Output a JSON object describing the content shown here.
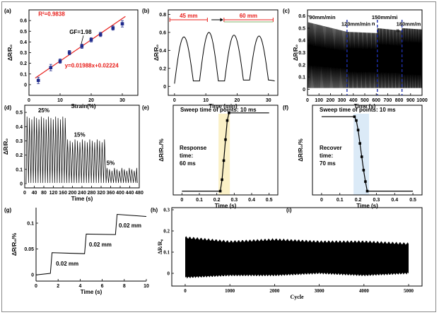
{
  "chart_data": [
    {
      "id": "a",
      "panel_label": "(a)",
      "type": "scatter",
      "xlabel": "Strain(%)",
      "ylabel": "ΔR/R₀",
      "xlim": [
        0,
        35
      ],
      "ylim": [
        -0.1,
        0.7
      ],
      "xticks": [
        0,
        10,
        20,
        30
      ],
      "yticks": [
        0.0,
        0.1,
        0.2,
        0.3,
        0.4,
        0.5,
        0.6
      ],
      "x": [
        3,
        7,
        10,
        13,
        17,
        20,
        23,
        27,
        30
      ],
      "values": [
        0.04,
        0.16,
        0.22,
        0.3,
        0.36,
        0.42,
        0.47,
        0.53,
        0.57
      ],
      "errors": [
        0.03,
        0.03,
        0.02,
        0.02,
        0.02,
        0.02,
        0.02,
        0.02,
        0.03
      ],
      "fit": {
        "slope": 0.01988,
        "intercept": 0.02224
      },
      "annotations": {
        "r2": "R²=0.9838",
        "gf": "GF=1.98",
        "equation": "y=0.01988x+0.02224"
      },
      "colors": {
        "points": "#1f2a8c",
        "fit": "#e8201c",
        "annot": "#e8201c"
      }
    },
    {
      "id": "b",
      "panel_label": "(b)",
      "type": "line",
      "xlabel": "Time (min)",
      "ylabel": "ΔR/R₀",
      "xlim": [
        -2,
        33
      ],
      "ylim": [
        -0.1,
        0.85
      ],
      "xticks": [
        0,
        10,
        20,
        30
      ],
      "yticks": [
        0.0,
        0.2,
        0.4,
        0.6,
        0.8
      ],
      "x": [
        0,
        3,
        6,
        8,
        11,
        14,
        16,
        19,
        22,
        24,
        27,
        30,
        32
      ],
      "values": [
        0.03,
        0.55,
        0.06,
        0.06,
        0.6,
        0.06,
        0.06,
        0.57,
        0.07,
        0.07,
        0.56,
        0.07,
        0.06
      ],
      "annotations": {
        "label_45": "45 mm",
        "label_60": "60 mm"
      },
      "colors": {
        "line": "#000000",
        "annot": "#e8201c"
      }
    },
    {
      "id": "c",
      "panel_label": "(c)",
      "type": "line",
      "xlabel": "Time (s)",
      "ylabel": "ΔR/R₀",
      "xlim": [
        0,
        1000
      ],
      "ylim": [
        -0.05,
        0.65
      ],
      "xticks": [
        0,
        100,
        200,
        300,
        400,
        500,
        600,
        700,
        800,
        900,
        1000
      ],
      "yticks": [
        0.0,
        0.1,
        0.2,
        0.3,
        0.4,
        0.5,
        0.6
      ],
      "segments": [
        {
          "label": "90mm/min",
          "x_start": 0,
          "x_end": 345,
          "peak_start": 0.55,
          "peak_end": 0.47,
          "n_cycles": 60
        },
        {
          "label": "120mm/min",
          "x_start": 345,
          "x_end": 610,
          "peak_start": 0.47,
          "peak_end": 0.46,
          "n_cycles": 50
        },
        {
          "label": "150mm/mi\nn",
          "x_start": 610,
          "x_end": 825,
          "peak_start": 0.5,
          "peak_end": 0.48,
          "n_cycles": 42
        },
        {
          "label": "180mm/m\nn",
          "x_start": 825,
          "x_end": 1000,
          "peak_start": 0.5,
          "peak_end": 0.49,
          "n_cycles": 36
        }
      ],
      "dividers": [
        345,
        610,
        825
      ],
      "colors": {
        "line": "#000000",
        "divider": "#1d2fa8"
      }
    },
    {
      "id": "d",
      "panel_label": "(d)",
      "type": "line",
      "xlabel": "Time (s)",
      "ylabel": "ΔR/R₀",
      "xlim": [
        0,
        480
      ],
      "ylim": [
        -0.03,
        0.55
      ],
      "xticks": [
        0,
        40,
        80,
        120,
        160,
        200,
        240,
        280,
        320,
        360,
        400,
        440,
        480
      ],
      "yticks": [
        0.0,
        0.1,
        0.2,
        0.3,
        0.4,
        0.5
      ],
      "segments": [
        {
          "label": "25%",
          "x_start": 0,
          "x_end": 170,
          "peak": 0.47,
          "n_cycles": 17
        },
        {
          "label": "15%",
          "x_start": 170,
          "x_end": 335,
          "peak": 0.31,
          "n_cycles": 16
        },
        {
          "label": "5%",
          "x_start": 335,
          "x_end": 470,
          "peak": 0.11,
          "n_cycles": 13
        }
      ],
      "colors": {
        "line": "#000000"
      }
    },
    {
      "id": "e",
      "panel_label": "(e)",
      "type": "line",
      "xlabel": "Time (s)",
      "ylabel": "ΔR/R₀/%",
      "xlim": [
        -0.05,
        0.55
      ],
      "ylim": [
        -0.02,
        0.45
      ],
      "xticks": [
        0.0,
        0.1,
        0.2,
        0.3,
        0.4,
        0.5
      ],
      "yticks": [],
      "x": [
        0.0,
        0.22,
        0.23,
        0.24,
        0.25,
        0.26,
        0.27,
        0.5
      ],
      "values": [
        0.0,
        0.0,
        0.06,
        0.16,
        0.27,
        0.37,
        0.41,
        0.41
      ],
      "highlight_x": [
        0.21,
        0.275
      ],
      "annotations": {
        "header": "Sweep time of points: 10 ms",
        "caption": "Response\ntime:\n60 ms"
      },
      "colors": {
        "line": "#000000",
        "band": "#fbf1c7"
      }
    },
    {
      "id": "f",
      "panel_label": "(f)",
      "type": "line",
      "xlabel": "Time (s)",
      "ylabel": "ΔR/R₀/%",
      "xlim": [
        -0.05,
        0.55
      ],
      "ylim": [
        -0.02,
        0.45
      ],
      "xticks": [
        0.0,
        0.1,
        0.2,
        0.3,
        0.4,
        0.5
      ],
      "yticks": [],
      "x": [
        0.0,
        0.18,
        0.19,
        0.2,
        0.21,
        0.22,
        0.23,
        0.24,
        0.25,
        0.5
      ],
      "values": [
        0.39,
        0.39,
        0.37,
        0.32,
        0.25,
        0.18,
        0.11,
        0.05,
        0.0,
        0.0
      ],
      "highlight_x": [
        0.175,
        0.26
      ],
      "annotations": {
        "header": "Sweep time of points: 10 ms",
        "caption": "Recover\ntime:\n70 ms"
      },
      "colors": {
        "line": "#000000",
        "band": "#dbeaf7"
      }
    },
    {
      "id": "g",
      "panel_label": "(g)",
      "type": "line",
      "xlabel": "Time (s)",
      "ylabel": "ΔR/R₀/%",
      "xlim": [
        0,
        10
      ],
      "ylim": [
        -0.012,
        0.13
      ],
      "xticks": [
        0,
        2,
        4,
        6,
        8,
        10
      ],
      "yticks": [
        0.0,
        0.05,
        0.1
      ],
      "x": [
        0,
        1.3,
        1.45,
        4.4,
        4.55,
        7.2,
        7.35,
        10
      ],
      "values": [
        0.0,
        0.003,
        0.043,
        0.041,
        0.079,
        0.078,
        0.117,
        0.113
      ],
      "annotations": {
        "step_labels": [
          "0.02 mm",
          "0.02 mm",
          "0.02 mm"
        ]
      },
      "colors": {
        "line": "#000000"
      }
    },
    {
      "id": "h",
      "panel_label": "(h)",
      "type": "area",
      "xlabel": "Cycle",
      "ylabel": "ΔR/R₀",
      "xlim": [
        -300,
        5300
      ],
      "ylim": [
        -0.06,
        0.31
      ],
      "xticks": [
        0,
        1000,
        2000,
        3000,
        4000,
        5000
      ],
      "yticks": [
        0.0,
        0.1,
        0.2,
        0.3
      ],
      "x": [
        0,
        1000,
        2000,
        3000,
        4000,
        5000
      ],
      "upper": [
        0.17,
        0.15,
        0.16,
        0.15,
        0.15,
        0.14
      ],
      "lower": [
        -0.02,
        -0.01,
        -0.01,
        0.0,
        -0.01,
        0.0
      ],
      "colors": {
        "fill": "#000000"
      }
    },
    {
      "id": "i",
      "panel_label": "(i)",
      "type": "other"
    }
  ]
}
